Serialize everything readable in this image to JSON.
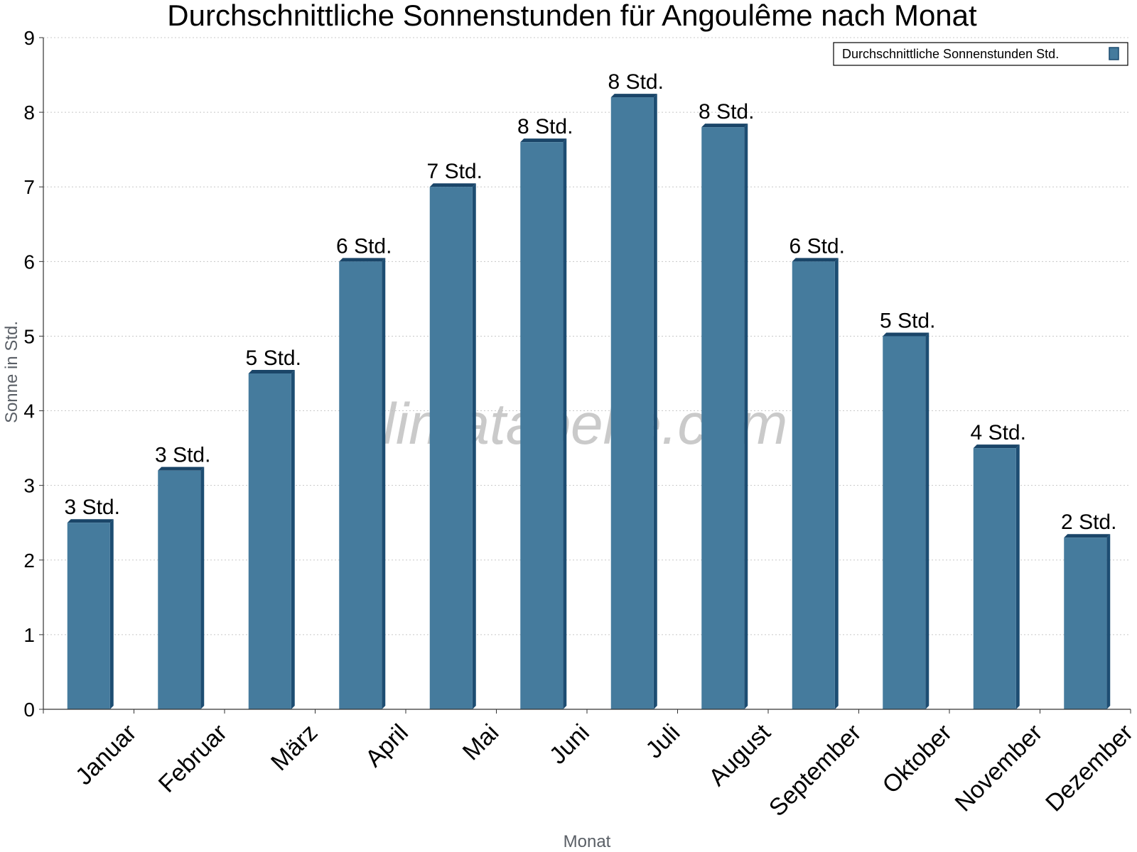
{
  "chart_data": {
    "type": "bar",
    "title": "Durchschnittliche Sonnenstunden für Angoulême nach Monat",
    "xlabel": "Monat",
    "ylabel": "Sonne in Std.",
    "ylim": [
      0,
      9
    ],
    "yticks": [
      0,
      1,
      2,
      3,
      4,
      5,
      6,
      7,
      8,
      9
    ],
    "grid": true,
    "legend_position": "top-right",
    "categories": [
      "Januar",
      "Februar",
      "März",
      "April",
      "Mai",
      "Juni",
      "Juli",
      "August",
      "September",
      "Oktober",
      "November",
      "Dezember"
    ],
    "series": [
      {
        "name": "Durchschnittliche Sonnenstunden Std.",
        "color": "#457b9d",
        "values": [
          2.5,
          3.2,
          4.5,
          6.0,
          7.0,
          7.6,
          8.2,
          7.8,
          6.0,
          5.0,
          3.5,
          2.3
        ],
        "labels": [
          "3 Std.",
          "3 Std.",
          "5 Std.",
          "6 Std.",
          "7 Std.",
          "8 Std.",
          "8 Std.",
          "8 Std.",
          "6 Std.",
          "5 Std.",
          "4 Std.",
          "2 Std."
        ]
      }
    ],
    "watermark": "klimatabelle.com"
  }
}
